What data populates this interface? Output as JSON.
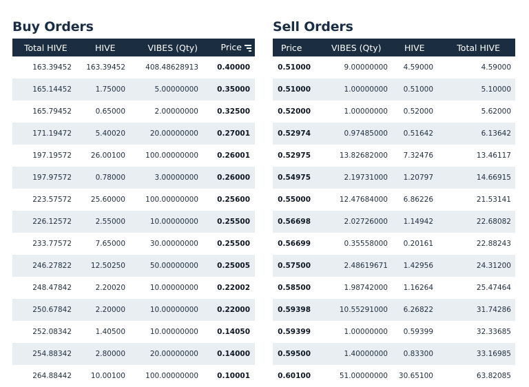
{
  "buy": {
    "title": "Buy Orders",
    "columns": [
      "Total HIVE",
      "HIVE",
      "VIBES (Qty)",
      "Price"
    ],
    "rows": [
      [
        "163.39452",
        "163.39452",
        "408.48628913",
        "0.40000"
      ],
      [
        "165.14452",
        "1.75000",
        "5.00000000",
        "0.35000"
      ],
      [
        "165.79452",
        "0.65000",
        "2.00000000",
        "0.32500"
      ],
      [
        "171.19472",
        "5.40020",
        "20.00000000",
        "0.27001"
      ],
      [
        "197.19572",
        "26.00100",
        "100.00000000",
        "0.26001"
      ],
      [
        "197.97572",
        "0.78000",
        "3.00000000",
        "0.26000"
      ],
      [
        "223.57572",
        "25.60000",
        "100.00000000",
        "0.25600"
      ],
      [
        "226.12572",
        "2.55000",
        "10.00000000",
        "0.25500"
      ],
      [
        "233.77572",
        "7.65000",
        "30.00000000",
        "0.25500"
      ],
      [
        "246.27822",
        "12.50250",
        "50.00000000",
        "0.25005"
      ],
      [
        "248.47842",
        "2.20020",
        "10.00000000",
        "0.22002"
      ],
      [
        "250.67842",
        "2.20000",
        "10.00000000",
        "0.22000"
      ],
      [
        "252.08342",
        "1.40500",
        "10.00000000",
        "0.14050"
      ],
      [
        "254.88342",
        "2.80000",
        "20.00000000",
        "0.14000"
      ],
      [
        "264.88442",
        "10.00100",
        "100.00000000",
        "0.10001"
      ]
    ]
  },
  "sell": {
    "title": "Sell Orders",
    "columns": [
      "Price",
      "VIBES (Qty)",
      "HIVE",
      "Total HIVE"
    ],
    "rows": [
      [
        "0.51000",
        "9.00000000",
        "4.59000",
        "4.59000"
      ],
      [
        "0.51000",
        "1.00000000",
        "0.51000",
        "5.10000"
      ],
      [
        "0.52000",
        "1.00000000",
        "0.52000",
        "5.62000"
      ],
      [
        "0.52974",
        "0.97485000",
        "0.51642",
        "6.13642"
      ],
      [
        "0.52975",
        "13.82682000",
        "7.32476",
        "13.46117"
      ],
      [
        "0.54975",
        "2.19731000",
        "1.20797",
        "14.66915"
      ],
      [
        "0.55000",
        "12.47684000",
        "6.86226",
        "21.53141"
      ],
      [
        "0.56698",
        "2.02726000",
        "1.14942",
        "22.68082"
      ],
      [
        "0.56699",
        "0.35558000",
        "0.20161",
        "22.88243"
      ],
      [
        "0.57500",
        "2.48619671",
        "1.42956",
        "24.31200"
      ],
      [
        "0.58500",
        "1.98742000",
        "1.16264",
        "25.47464"
      ],
      [
        "0.59398",
        "10.55291000",
        "6.26822",
        "31.74286"
      ],
      [
        "0.59399",
        "1.00000000",
        "0.59399",
        "32.33685"
      ],
      [
        "0.59500",
        "1.40000000",
        "0.83300",
        "33.16985"
      ],
      [
        "0.60100",
        "51.00000000",
        "30.65100",
        "63.82085"
      ]
    ]
  },
  "icons": {
    "sort": "sort-icon"
  }
}
